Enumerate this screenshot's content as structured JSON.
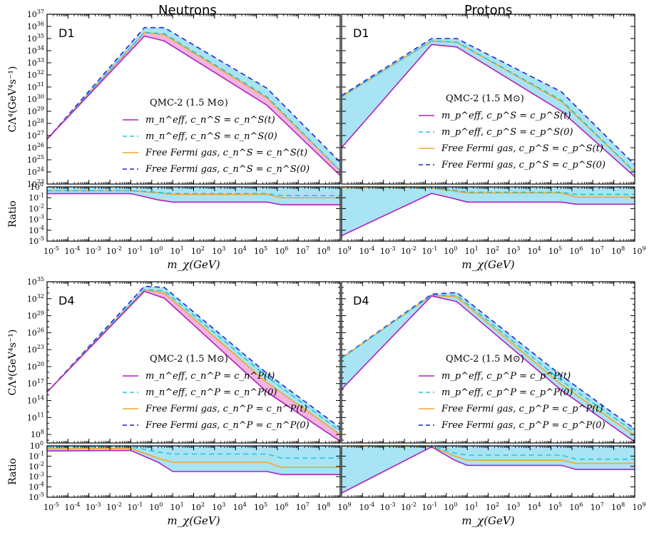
{
  "columns": [
    "Neutrons",
    "Protons"
  ],
  "colors": {
    "meff_t": "#b21fbf",
    "meff_0": "#22c4dd",
    "fermi_t": "#f5a623",
    "fermi_0": "#2424d6",
    "band_light": "#a8e4f4",
    "band_pink": "#f2b6e0"
  },
  "chart_data": [
    {
      "type": "line",
      "id": "D1-neutrons",
      "panel_label": "D1",
      "column": "Neutrons",
      "ylabel": "CΛ⁴(GeV⁴s⁻¹)",
      "xlabel": "",
      "x_scale": "log",
      "y_scale": "log",
      "xlim": [
        1e-05,
        1000000000.0
      ],
      "ylim_log10": [
        23,
        37
      ],
      "legend": {
        "title": "QMC-2 (1.5 M⊙)",
        "entries": [
          "m_n^eff,  c_n^S = c_n^S(t)",
          "m_n^eff,  c_n^S = c_n^S(0)",
          "Free Fermi gas,  c_n^S = c_n^S(t)",
          "Free Fermi gas,  c_n^S = c_n^S(0)"
        ]
      },
      "log_x": [
        -5,
        -0.35,
        0.6,
        5.5,
        9
      ],
      "series": [
        {
          "name": "m_n^eff, c_n^S = c_n^S(t)",
          "log_y": [
            26.7,
            35.2,
            34.8,
            29.5,
            23.7
          ]
        },
        {
          "name": "m_n^eff, c_n^S = c_n^S(0)",
          "log_y": [
            26.7,
            35.5,
            35.4,
            30.2,
            24.1
          ]
        },
        {
          "name": "Free Fermi gas, c_n^S = c_n^S(t)",
          "log_y": [
            26.7,
            35.5,
            35.3,
            30.1,
            24.1
          ]
        },
        {
          "name": "Free Fermi gas, c_n^S = c_n^S(0)",
          "log_y": [
            26.7,
            35.9,
            35.9,
            30.9,
            24.8
          ]
        }
      ]
    },
    {
      "type": "line",
      "id": "D1-neutrons-ratio",
      "column": "Neutrons",
      "ylabel": "Ratio",
      "xlabel": "m_χ(GeV)",
      "x_scale": "log",
      "y_scale": "log",
      "xlim": [
        1e-05,
        1000000000.0
      ],
      "ylim_log10": [
        -5,
        0
      ],
      "log_x": [
        -5,
        -1,
        0.3,
        1.0,
        5.5,
        6.2,
        9
      ],
      "series": [
        {
          "name": "m_n^eff, c_n^S = c_n^S(t)",
          "log_y": [
            -0.62,
            -0.62,
            -1.2,
            -1.4,
            -1.4,
            -1.65,
            -1.65
          ]
        },
        {
          "name": "m_n^eff, c_n^S = c_n^S(0)",
          "log_y": [
            -0.35,
            -0.35,
            -0.5,
            -0.62,
            -0.62,
            -0.8,
            -0.8
          ]
        },
        {
          "name": "Free Fermi gas, c_n^S = c_n^S(t)",
          "log_y": [
            -0.36,
            -0.36,
            -0.55,
            -0.7,
            -0.7,
            -1.0,
            -1.0
          ]
        },
        {
          "name": "Free Fermi gas, c_n^S = c_n^S(0)",
          "log_y": [
            0,
            0,
            0,
            0,
            0,
            0,
            0
          ]
        }
      ]
    },
    {
      "type": "line",
      "id": "D1-protons",
      "panel_label": "D1",
      "column": "Protons",
      "ylabel": "",
      "xlabel": "",
      "x_scale": "log",
      "y_scale": "log",
      "xlim": [
        1e-05,
        1000000000.0
      ],
      "ylim_log10": [
        23,
        37
      ],
      "legend": {
        "title": "QMC-2 (1.5 M⊙)",
        "entries": [
          "m_p^eff,  c_p^S = c_p^S(t)",
          "m_p^eff,  c_p^S = c_p^S(0)",
          "Free Fermi gas,  c_p^S = c_p^S(t)",
          "Free Fermi gas,  c_p^S = c_p^S(0)"
        ]
      },
      "log_x": [
        -5,
        -0.7,
        0.5,
        5.5,
        9
      ],
      "series": [
        {
          "name": "m_p^eff, c_p^S = c_p^S(t)",
          "log_y": [
            26.0,
            34.5,
            34.3,
            29.0,
            23.6
          ]
        },
        {
          "name": "m_p^eff, c_p^S = c_p^S(0)",
          "log_y": [
            30.2,
            34.8,
            34.7,
            29.9,
            24.0
          ]
        },
        {
          "name": "Free Fermi gas, c_p^S = c_p^S(t)",
          "log_y": [
            30.2,
            34.8,
            34.7,
            29.8,
            24.0
          ]
        },
        {
          "name": "Free Fermi gas, c_p^S = c_p^S(0)",
          "log_y": [
            30.3,
            35.0,
            35.0,
            30.6,
            24.6
          ]
        }
      ]
    },
    {
      "type": "line",
      "id": "D1-protons-ratio",
      "column": "Protons",
      "ylabel": "",
      "xlabel": "m_χ(GeV)",
      "x_scale": "log",
      "y_scale": "log",
      "xlim": [
        1e-05,
        1000000000.0
      ],
      "ylim_log10": [
        -5,
        0
      ],
      "log_x": [
        -5,
        -0.7,
        0.4,
        1.0,
        5.5,
        6.2,
        9
      ],
      "series": [
        {
          "name": "m_p^eff, c_p^S = c_p^S(t)",
          "log_y": [
            -4.5,
            -0.6,
            -1.1,
            -1.4,
            -1.4,
            -1.6,
            -1.6
          ]
        },
        {
          "name": "m_p^eff, c_p^S = c_p^S(0)",
          "log_y": [
            0,
            -0.1,
            -0.3,
            -0.5,
            -0.5,
            -0.7,
            -0.7
          ]
        },
        {
          "name": "Free Fermi gas, c_p^S = c_p^S(t)",
          "log_y": [
            -0.05,
            -0.1,
            -0.4,
            -0.55,
            -0.55,
            -0.95,
            -0.95
          ]
        },
        {
          "name": "Free Fermi gas, c_p^S = c_p^S(0)",
          "log_y": [
            0,
            0,
            0,
            0,
            0,
            0,
            0
          ]
        }
      ]
    },
    {
      "type": "line",
      "id": "D4-neutrons",
      "panel_label": "D4",
      "column": "Neutrons",
      "ylabel": "CΛ⁴(GeV⁴s⁻¹)",
      "xlabel": "",
      "x_scale": "log",
      "y_scale": "log",
      "xlim": [
        1e-05,
        1000000000.0
      ],
      "ylim_log10": [
        6.5,
        35
      ],
      "legend": {
        "title": "QMC-2 (1.5 M⊙)",
        "entries": [
          "m_n^eff,  c_n^P = c_n^P(t)",
          "m_n^eff,  c_n^P = c_n^P(0)",
          "Free Fermi gas,  c_n^P = c_n^P(t)",
          "Free Fermi gas,  c_n^P = c_n^P(0)"
        ]
      },
      "log_x": [
        -5,
        -0.35,
        0.6,
        5.5,
        9
      ],
      "series": [
        {
          "name": "m_n^eff, c_n^P = c_n^P(t)",
          "log_y": [
            15.5,
            33.3,
            32.1,
            15.5,
            6.8
          ]
        },
        {
          "name": "m_n^eff, c_n^P = c_n^P(0)",
          "log_y": [
            15.5,
            33.6,
            33.4,
            18.2,
            8.6
          ]
        },
        {
          "name": "Free Fermi gas, c_n^P = c_n^P(t)",
          "log_y": [
            15.5,
            33.6,
            33.0,
            17.2,
            8.0
          ]
        },
        {
          "name": "Free Fermi gas, c_n^P = c_n^P(0)",
          "log_y": [
            15.5,
            34.2,
            34.0,
            18.8,
            9.2
          ]
        }
      ]
    },
    {
      "type": "line",
      "id": "D4-neutrons-ratio",
      "column": "Neutrons",
      "ylabel": "Ratio",
      "xlabel": "m_χ(GeV)",
      "x_scale": "log",
      "y_scale": "log",
      "xlim": [
        1e-05,
        1000000000.0
      ],
      "ylim_log10": [
        -5,
        0
      ],
      "log_x": [
        -5,
        -1,
        0.3,
        1.0,
        5.5,
        6.2,
        9
      ],
      "series": [
        {
          "name": "m_n^eff, c_n^P = c_n^P(t)",
          "log_y": [
            -0.5,
            -0.45,
            -1.6,
            -2.5,
            -2.5,
            -2.8,
            -2.8
          ]
        },
        {
          "name": "m_n^eff, c_n^P = c_n^P(0)",
          "log_y": [
            -0.15,
            -0.1,
            -0.6,
            -0.8,
            -0.8,
            -1.2,
            -1.2
          ]
        },
        {
          "name": "Free Fermi gas, c_n^P = c_n^P(t)",
          "log_y": [
            -0.3,
            -0.25,
            -1.2,
            -1.6,
            -1.6,
            -2.1,
            -2.1
          ]
        },
        {
          "name": "Free Fermi gas, c_n^P = c_n^P(0)",
          "log_y": [
            0,
            0,
            0,
            0,
            0,
            0,
            0
          ]
        }
      ]
    },
    {
      "type": "line",
      "id": "D4-protons",
      "panel_label": "D4",
      "column": "Protons",
      "ylabel": "",
      "xlabel": "",
      "x_scale": "log",
      "y_scale": "log",
      "xlim": [
        1e-05,
        1000000000.0
      ],
      "ylim_log10": [
        6.5,
        35
      ],
      "legend": {
        "title": "QMC-2 (1.5 M⊙)",
        "entries": [
          "m_p^eff,  c_p^P = c_p^P(t)",
          "m_p^eff,  c_p^P = c_p^P(0)",
          "Free Fermi gas,  c_p^P = c_p^P(t)",
          "Free Fermi gas,  c_p^P = c_p^P(0)"
        ]
      },
      "log_x": [
        -5,
        -0.7,
        0.5,
        5.5,
        9
      ],
      "series": [
        {
          "name": "m_p^eff, c_p^P = c_p^P(t)",
          "log_y": [
            16.0,
            32.5,
            31.5,
            15.8,
            6.7
          ]
        },
        {
          "name": "m_p^eff, c_p^P = c_p^P(0)",
          "log_y": [
            21.5,
            32.6,
            32.6,
            17.5,
            8.4
          ]
        },
        {
          "name": "Free Fermi gas, c_p^P = c_p^P(t)",
          "log_y": [
            21.5,
            32.6,
            32.3,
            16.8,
            7.8
          ]
        },
        {
          "name": "Free Fermi gas, c_p^P = c_p^P(0)",
          "log_y": [
            21.6,
            32.8,
            33.1,
            18.4,
            9.0
          ]
        }
      ]
    },
    {
      "type": "line",
      "id": "D4-protons-ratio",
      "column": "Protons",
      "ylabel": "",
      "xlabel": "m_χ(GeV)",
      "x_scale": "log",
      "y_scale": "log",
      "xlim": [
        1e-05,
        1000000000.0
      ],
      "ylim_log10": [
        -5,
        0
      ],
      "log_x": [
        -5,
        -0.7,
        0.4,
        1.0,
        5.5,
        6.2,
        9
      ],
      "series": [
        {
          "name": "m_p^eff, c_p^P = c_p^P(t)",
          "log_y": [
            -4.6,
            -0.1,
            -1.4,
            -1.9,
            -1.9,
            -2.3,
            -2.3
          ]
        },
        {
          "name": "m_p^eff, c_p^P = c_p^P(0)",
          "log_y": [
            0,
            -0.1,
            -0.7,
            -0.9,
            -0.9,
            -1.3,
            -1.3
          ]
        },
        {
          "name": "Free Fermi gas, c_p^P = c_p^P(t)",
          "log_y": [
            -0.05,
            -0.1,
            -1.0,
            -1.4,
            -1.4,
            -1.7,
            -1.7
          ]
        },
        {
          "name": "Free Fermi gas, c_p^P = c_p^P(0)",
          "log_y": [
            0,
            0,
            0,
            0,
            0,
            0,
            0
          ]
        }
      ]
    }
  ]
}
